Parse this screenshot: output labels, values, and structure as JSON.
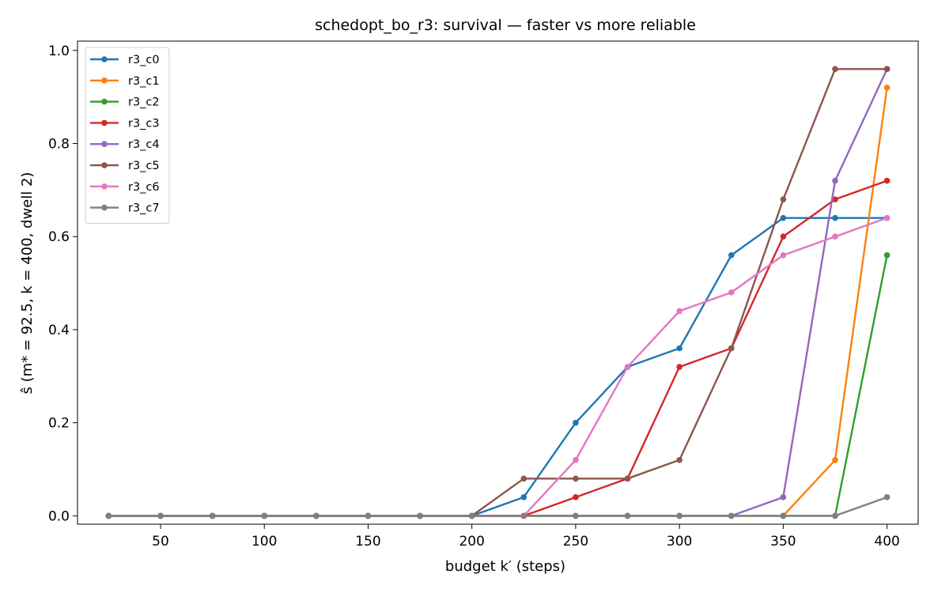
{
  "chart_data": {
    "type": "line",
    "title": "schedopt_bo_r3: survival — faster vs more reliable",
    "xlabel": "budget k′ (steps)",
    "ylabel": "ŝ (m* = 92.5, k = 400, dwell 2)",
    "xlim": [
      10,
      415
    ],
    "ylim": [
      -0.018,
      1.02
    ],
    "xticks": [
      50,
      100,
      150,
      200,
      250,
      300,
      350,
      400
    ],
    "yticks": [
      0.0,
      0.2,
      0.4,
      0.6,
      0.8,
      1.0
    ],
    "ytick_labels": [
      "0.0",
      "0.2",
      "0.4",
      "0.6",
      "0.8",
      "1.0"
    ],
    "grid": false,
    "legend_position": "upper-left",
    "x": [
      25,
      50,
      75,
      100,
      125,
      150,
      175,
      200,
      225,
      250,
      275,
      300,
      325,
      350,
      375,
      400
    ],
    "series": [
      {
        "name": "r3_c0",
        "color": "#1f77b4",
        "values": [
          0,
          0,
          0,
          0,
          0,
          0,
          0,
          0,
          0.04,
          0.2,
          0.32,
          0.36,
          0.56,
          0.64,
          0.64,
          0.64
        ]
      },
      {
        "name": "r3_c1",
        "color": "#ff7f0e",
        "values": [
          0,
          0,
          0,
          0,
          0,
          0,
          0,
          0,
          0,
          0,
          0,
          0,
          0,
          0,
          0.12,
          0.92
        ]
      },
      {
        "name": "r3_c2",
        "color": "#2ca02c",
        "values": [
          0,
          0,
          0,
          0,
          0,
          0,
          0,
          0,
          0,
          0,
          0,
          0,
          0,
          0,
          0,
          0.56
        ]
      },
      {
        "name": "r3_c3",
        "color": "#d62728",
        "values": [
          0,
          0,
          0,
          0,
          0,
          0,
          0,
          0,
          0,
          0.04,
          0.08,
          0.32,
          0.36,
          0.6,
          0.68,
          0.72
        ]
      },
      {
        "name": "r3_c4",
        "color": "#9467bd",
        "values": [
          0,
          0,
          0,
          0,
          0,
          0,
          0,
          0,
          0,
          0,
          0,
          0,
          0,
          0.04,
          0.72,
          0.96
        ]
      },
      {
        "name": "r3_c5",
        "color": "#8c564b",
        "values": [
          0,
          0,
          0,
          0,
          0,
          0,
          0,
          0,
          0.08,
          0.08,
          0.08,
          0.12,
          0.36,
          0.68,
          0.96,
          0.96
        ]
      },
      {
        "name": "r3_c6",
        "color": "#e377c2",
        "values": [
          0,
          0,
          0,
          0,
          0,
          0,
          0,
          0,
          0,
          0.12,
          0.32,
          0.44,
          0.48,
          0.56,
          0.6,
          0.64
        ]
      },
      {
        "name": "r3_c7",
        "color": "#7f7f7f",
        "values": [
          0,
          0,
          0,
          0,
          0,
          0,
          0,
          0,
          0,
          0,
          0,
          0,
          0,
          0,
          0,
          0.04
        ]
      }
    ]
  }
}
